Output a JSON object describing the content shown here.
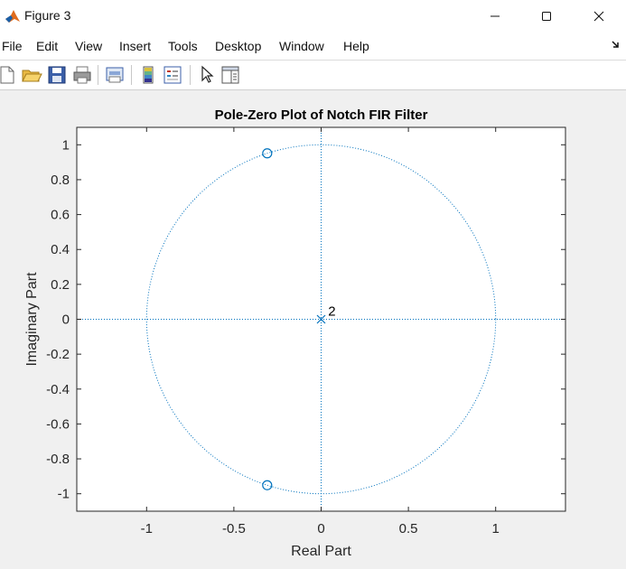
{
  "window": {
    "title": "Figure 3",
    "controls": [
      "minimize",
      "maximize",
      "close"
    ]
  },
  "menu": {
    "items": [
      "File",
      "Edit",
      "View",
      "Insert",
      "Tools",
      "Desktop",
      "Window",
      "Help"
    ]
  },
  "toolbar": {
    "buttons": [
      "new-figure-icon",
      "open-file-icon",
      "save-icon",
      "print-icon",
      "print-preview-icon",
      "colorbar-icon",
      "legend-icon",
      "pointer-icon",
      "property-editor-icon"
    ]
  },
  "chart_data": {
    "type": "scatter",
    "title": "Pole-Zero Plot of Notch FIR Filter",
    "xlabel": "Real Part",
    "ylabel": "Imaginary Part",
    "xlim": [
      -1.4,
      1.4
    ],
    "ylim": [
      -1.1,
      1.1
    ],
    "xticks": [
      -1,
      -0.5,
      0,
      0.5,
      1
    ],
    "xtick_labels": [
      "-1",
      "-0.5",
      "0",
      "0.5",
      "1"
    ],
    "yticks": [
      1,
      0.8,
      0.6,
      0.4,
      0.2,
      0,
      -0.2,
      -0.4,
      -0.6,
      -0.8,
      -1
    ],
    "ytick_labels": [
      "1",
      "0.8",
      "0.6",
      "0.4",
      "0.2",
      "0",
      "-0.2",
      "-0.4",
      "-0.6",
      "-0.8",
      "-1"
    ],
    "unit_circle": true,
    "axes_lines": true,
    "grid": false,
    "series": [
      {
        "marker": "circle",
        "x": [
          -0.309,
          -0.309
        ],
        "y": [
          0.951,
          -0.951
        ]
      },
      {
        "marker": "x",
        "x": [
          0
        ],
        "y": [
          0
        ]
      }
    ],
    "annotations": [
      {
        "text": "2",
        "x": 0.04,
        "y": 0.02
      }
    ],
    "color": "#0072BD"
  }
}
